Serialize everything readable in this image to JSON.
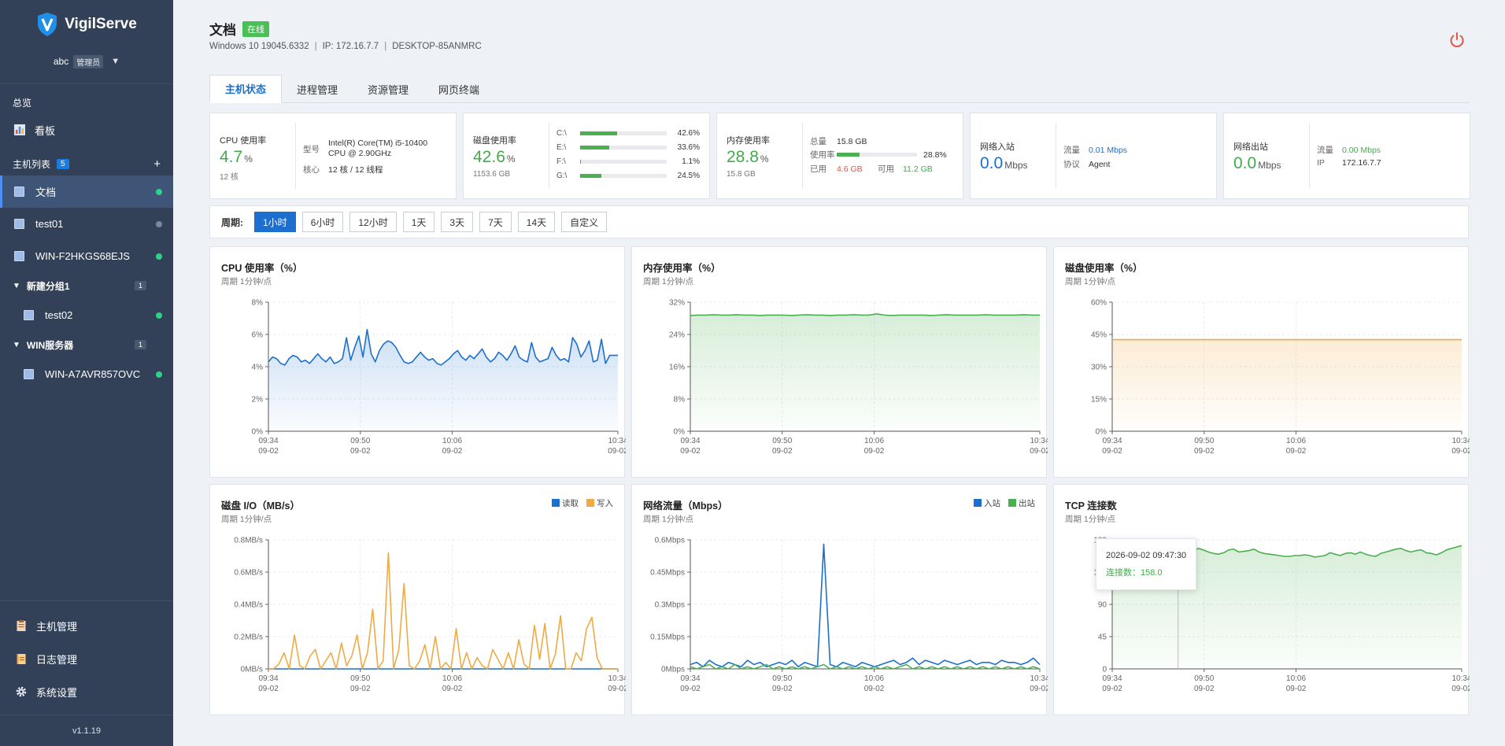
{
  "app": {
    "brand": "VigilServe",
    "version": "v1.1.19"
  },
  "user": {
    "name": "abc",
    "role": "管理员"
  },
  "sidebar": {
    "overview_label": "总览",
    "dashboard_label": "看板",
    "hostlist_label": "主机列表",
    "host_count": "5",
    "hosts": [
      {
        "name": "文档",
        "online": true
      },
      {
        "name": "test01",
        "online": false
      },
      {
        "name": "WIN-F2HKGS68EJS",
        "online": true
      }
    ],
    "groups": [
      {
        "name": "新建分组1",
        "count": "1",
        "hosts": [
          {
            "name": "test02",
            "online": true
          }
        ]
      },
      {
        "name": "WIN服务器",
        "count": "1",
        "hosts": [
          {
            "name": "WIN-A7AVR857OVC",
            "online": true
          }
        ]
      }
    ],
    "bottom": [
      {
        "label": "主机管理",
        "icon": "clipboard-icon"
      },
      {
        "label": "日志管理",
        "icon": "notebook-icon"
      },
      {
        "label": "系统设置",
        "icon": "gear-icon"
      }
    ]
  },
  "header": {
    "title": "文档",
    "status": "在线",
    "os": "Windows 10 19045.6332",
    "ip": "IP: 172.16.7.7",
    "hostname": "DESKTOP-85ANMRC"
  },
  "tabs": [
    "主机状态",
    "进程管理",
    "资源管理",
    "网页终端"
  ],
  "cards": {
    "cpu": {
      "label": "CPU 使用率",
      "value": "4.7",
      "unit": "%",
      "sub": "12 核",
      "model_k": "型号",
      "model_v1": "Intel(R) Core(TM) i5-10400",
      "model_v2": "CPU @ 2.90GHz",
      "core_k": "核心",
      "core_v": "12 核 / 12 线程"
    },
    "disk": {
      "label": "磁盘使用率",
      "value": "42.6",
      "unit": "%",
      "sub": "1153.6 GB",
      "drives": [
        {
          "name": "C:\\",
          "pct": "42.6%",
          "v": 42.6
        },
        {
          "name": "E:\\",
          "pct": "33.6%",
          "v": 33.6
        },
        {
          "name": "F:\\",
          "pct": "1.1%",
          "v": 1.1
        },
        {
          "name": "G:\\",
          "pct": "24.5%",
          "v": 24.5
        }
      ]
    },
    "mem": {
      "label": "内存使用率",
      "value": "28.8",
      "unit": "%",
      "sub": "15.8 GB",
      "total_k": "总量",
      "total_v": "15.8 GB",
      "rate_k": "使用率",
      "rate_v": "28.8%",
      "rate": 28.8,
      "used_k": "已用",
      "used_v": "4.6 GB",
      "free_k": "可用",
      "free_v": "11.2 GB"
    },
    "netin": {
      "label": "网络入站",
      "value": "0.0",
      "unit": "Mbps",
      "flow_k": "流量",
      "flow_v": "0.01 Mbps",
      "proto_k": "协议",
      "proto_v": "Agent"
    },
    "netout": {
      "label": "网络出站",
      "value": "0.0",
      "unit": "Mbps",
      "flow_k": "流量",
      "flow_v": "0.00 Mbps",
      "ip_k": "IP",
      "ip_v": "172.16.7.7"
    }
  },
  "period": {
    "label": "周期:",
    "options": [
      "1小时",
      "6小时",
      "12小时",
      "1天",
      "3天",
      "7天",
      "14天",
      "自定义"
    ],
    "selected": 0
  },
  "colors": {
    "blue": "#1c6fce",
    "green": "#4bb04f",
    "orange": "#eeaa44"
  },
  "chart_data": [
    {
      "id": "cpu",
      "type": "area",
      "title": "CPU 使用率（%）",
      "subtitle": "周期 1分钟/点",
      "ylim": [
        0,
        8
      ],
      "yticks": [
        "0%",
        "2%",
        "4%",
        "6%",
        "8%"
      ],
      "xticks": [
        [
          "09:34",
          "09-02"
        ],
        [
          "09:50",
          "09-02"
        ],
        [
          "10:06",
          "09-02"
        ],
        [
          "10:34",
          "09-02"
        ]
      ],
      "series": [
        {
          "color": "#1c6fce",
          "values": [
            4.3,
            4.6,
            4.5,
            4.2,
            4.1,
            4.5,
            4.7,
            4.6,
            4.3,
            4.4,
            4.2,
            4.5,
            4.8,
            4.5,
            4.3,
            4.6,
            4.2,
            4.3,
            4.5,
            5.8,
            4.4,
            5.2,
            5.9,
            4.6,
            6.3,
            4.8,
            4.3,
            5.0,
            5.4,
            5.6,
            5.5,
            5.2,
            4.7,
            4.3,
            4.2,
            4.3,
            4.6,
            4.9,
            4.6,
            4.4,
            4.5,
            4.2,
            4.1,
            4.3,
            4.5,
            4.8,
            5.0,
            4.6,
            4.4,
            4.7,
            4.5,
            4.8,
            5.1,
            4.6,
            4.3,
            4.5,
            4.9,
            4.7,
            4.4,
            4.8,
            5.3,
            4.6,
            4.4,
            4.3,
            5.5,
            4.6,
            4.3,
            4.4,
            4.5,
            5.2,
            4.7,
            4.4,
            4.5,
            4.3,
            5.8,
            5.4,
            4.6,
            5.0,
            5.6,
            4.3,
            4.4,
            5.7,
            4.2,
            4.7,
            4.7,
            4.7
          ]
        }
      ]
    },
    {
      "id": "mem",
      "type": "area",
      "title": "内存使用率（%）",
      "subtitle": "周期 1分钟/点",
      "ylim": [
        0,
        32
      ],
      "yticks": [
        "0%",
        "8%",
        "16%",
        "24%",
        "32%"
      ],
      "xticks": [
        [
          "09:34",
          "09-02"
        ],
        [
          "09:50",
          "09-02"
        ],
        [
          "10:06",
          "09-02"
        ],
        [
          "10:34",
          "09-02"
        ]
      ],
      "series": [
        {
          "color": "#4bb04f",
          "values": [
            28.7,
            28.8,
            28.8,
            28.9,
            28.8,
            28.8,
            28.9,
            28.8,
            28.8,
            28.7,
            28.8,
            28.8,
            28.8,
            28.7,
            28.8,
            28.9,
            28.8,
            28.8,
            28.7,
            28.8,
            28.8,
            28.9,
            28.8,
            28.8,
            29.1,
            28.8,
            28.7,
            28.8,
            28.8,
            28.8,
            28.8,
            28.7,
            28.8,
            28.9,
            28.8,
            28.8,
            28.8,
            28.8,
            28.9,
            28.8,
            28.8,
            28.8,
            28.8,
            28.9,
            28.8,
            28.8
          ]
        }
      ]
    },
    {
      "id": "disk",
      "type": "area",
      "title": "磁盘使用率（%）",
      "subtitle": "周期 1分钟/点",
      "ylim": [
        0,
        60
      ],
      "yticks": [
        "0%",
        "15%",
        "30%",
        "45%",
        "60%"
      ],
      "xticks": [
        [
          "09:34",
          "09-02"
        ],
        [
          "09:50",
          "09-02"
        ],
        [
          "10:06",
          "09-02"
        ],
        [
          "10:34",
          "09-02"
        ]
      ],
      "series": [
        {
          "color": "#eeaa44",
          "values": [
            42.6,
            42.6,
            42.6,
            42.6,
            42.6,
            42.6,
            42.6,
            42.6,
            42.6,
            42.6
          ]
        }
      ]
    },
    {
      "id": "diskio",
      "type": "line",
      "title": "磁盘 I/O（MB/s）",
      "subtitle": "周期 1分钟/点",
      "ylim": [
        0,
        0.8
      ],
      "yticks": [
        "0MB/s",
        "0.2MB/s",
        "0.4MB/s",
        "0.6MB/s",
        "0.8MB/s"
      ],
      "xticks": [
        [
          "09:34",
          "09-02"
        ],
        [
          "09:50",
          "09-02"
        ],
        [
          "10:06",
          "09-02"
        ],
        [
          "10:34",
          "09-02"
        ]
      ],
      "legend": [
        {
          "name": "读取",
          "color": "#1c6fce"
        },
        {
          "name": "写入",
          "color": "#eeaa44"
        }
      ],
      "series": [
        {
          "name": "读取",
          "color": "#1c6fce",
          "values": [
            0,
            0,
            0,
            0,
            0,
            0,
            0,
            0,
            0,
            0
          ]
        },
        {
          "name": "写入",
          "color": "#eeaa44",
          "values": [
            0,
            0,
            0.03,
            0.1,
            0,
            0.21,
            0.02,
            0,
            0.08,
            0.12,
            0,
            0.05,
            0.1,
            0,
            0.16,
            0.02,
            0.08,
            0.21,
            0,
            0.1,
            0.37,
            0,
            0.05,
            0.72,
            0,
            0.12,
            0.53,
            0.02,
            0,
            0.05,
            0.15,
            0,
            0.2,
            0,
            0.04,
            0,
            0.25,
            0,
            0.1,
            0,
            0.07,
            0.02,
            0,
            0.12,
            0.06,
            0,
            0.1,
            0,
            0.18,
            0.03,
            0,
            0.27,
            0.06,
            0.28,
            0,
            0.09,
            0.33,
            0,
            0,
            0.1,
            0.05,
            0.25,
            0.32,
            0.07,
            0,
            0,
            0,
            0
          ]
        }
      ]
    },
    {
      "id": "net",
      "type": "line",
      "title": "网络流量（Mbps）",
      "subtitle": "周期 1分钟/点",
      "ylim": [
        0,
        0.6
      ],
      "yticks": [
        "0Mbps",
        "0.15Mbps",
        "0.3Mbps",
        "0.45Mbps",
        "0.6Mbps"
      ],
      "xticks": [
        [
          "09:34",
          "09-02"
        ],
        [
          "09:50",
          "09-02"
        ],
        [
          "10:06",
          "09-02"
        ],
        [
          "10:34",
          "09-02"
        ]
      ],
      "legend": [
        {
          "name": "入站",
          "color": "#1c6fce"
        },
        {
          "name": "出站",
          "color": "#4bb04f"
        }
      ],
      "series": [
        {
          "name": "入站",
          "color": "#1c6fce",
          "values": [
            0.02,
            0.03,
            0.01,
            0.04,
            0.02,
            0.01,
            0.03,
            0.02,
            0.01,
            0.04,
            0.02,
            0.03,
            0.01,
            0.02,
            0.03,
            0.02,
            0.04,
            0.01,
            0.03,
            0.02,
            0.01,
            0.58,
            0.02,
            0.01,
            0.03,
            0.02,
            0.01,
            0.03,
            0.02,
            0.01,
            0.02,
            0.03,
            0.04,
            0.02,
            0.03,
            0.05,
            0.02,
            0.04,
            0.03,
            0.02,
            0.04,
            0.03,
            0.02,
            0.03,
            0.04,
            0.02,
            0.03,
            0.03,
            0.02,
            0.04,
            0.03,
            0.03,
            0.02,
            0.03,
            0.05,
            0.02
          ]
        },
        {
          "name": "出站",
          "color": "#4bb04f",
          "values": [
            0.01,
            0.0,
            0.01,
            0.02,
            0.0,
            0.01,
            0.0,
            0.02,
            0.0,
            0.01,
            0.0,
            0.01,
            0.02,
            0.0,
            0.01,
            0.0,
            0.01,
            0.0,
            0.01,
            0.0,
            0.01,
            0.02,
            0.0,
            0.01,
            0.0,
            0.01,
            0.0,
            0.01,
            0.0,
            0.01,
            0.0,
            0.01,
            0.0,
            0.01,
            0.02,
            0.0,
            0.01,
            0.0,
            0.01,
            0.0,
            0.01,
            0.0,
            0.01,
            0.0,
            0.01,
            0.0,
            0.01,
            0.0,
            0.01,
            0.0,
            0.01,
            0.0,
            0.01,
            0.0,
            0.01,
            0.0
          ]
        }
      ]
    },
    {
      "id": "tcp",
      "type": "area",
      "title": "TCP 连接数",
      "subtitle": "周期 1分钟/点",
      "ylim": [
        0,
        180
      ],
      "yticks": [
        "0",
        "45",
        "90",
        "135",
        "180"
      ],
      "xticks": [
        [
          "09:34",
          "09-02"
        ],
        [
          "09:50",
          "09-02"
        ],
        [
          "10:06",
          "09-02"
        ],
        [
          "10:34",
          "09-02"
        ]
      ],
      "tooltip": {
        "time": "2026-09-02 09:47:30",
        "label": "连接数：158.0",
        "index": 13
      },
      "series": [
        {
          "color": "#4bb04f",
          "values": [
            160,
            161,
            162,
            163,
            162,
            161,
            160,
            159,
            158,
            160,
            161,
            162,
            160,
            158,
            159,
            162,
            165,
            168,
            166,
            163,
            161,
            160,
            162,
            166,
            167,
            163,
            164,
            165,
            167,
            163,
            161,
            160,
            159,
            158,
            157,
            157,
            158,
            158,
            159,
            158,
            156,
            157,
            158,
            162,
            160,
            158,
            161,
            162,
            160,
            163,
            160,
            158,
            157,
            161,
            163,
            165,
            167,
            168,
            165,
            163,
            165,
            166,
            162,
            161,
            159,
            162,
            166,
            168,
            170,
            172
          ]
        }
      ]
    }
  ]
}
